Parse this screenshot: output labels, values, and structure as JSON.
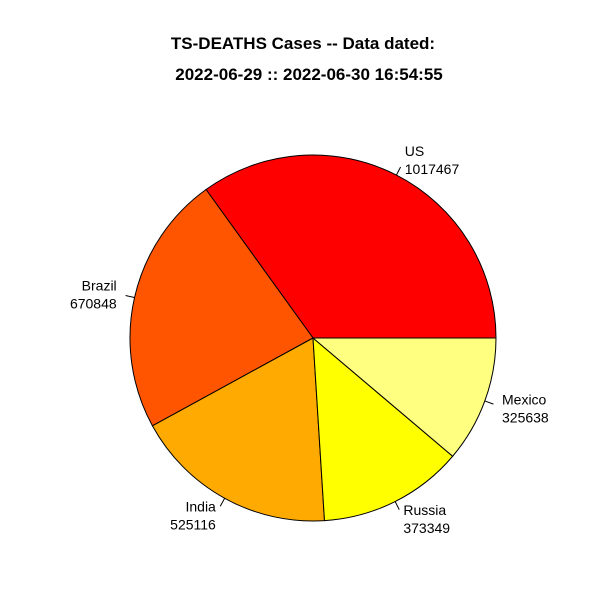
{
  "chart_data": {
    "type": "pie",
    "title": "TS-DEATHS Cases  -- Data dated:",
    "subtitle": "2022-06-29  ::  2022-06-30 16:54:55",
    "direction": "counterclockwise",
    "start_angle_deg": 0,
    "slices": [
      {
        "label": "US",
        "value_text": "1017467",
        "value": 1017467,
        "color": "#FF0000"
      },
      {
        "label": "Brazil",
        "value_text": "670848",
        "value": 670848,
        "color": "#FF5500"
      },
      {
        "label": "India",
        "value_text": "525116",
        "value": 525116,
        "color": "#FFAA00"
      },
      {
        "label": "Russia",
        "value_text": "373349",
        "value": 373349,
        "color": "#FFFF00"
      },
      {
        "label": "Mexico",
        "value_text": "325638",
        "value": 325638,
        "color": "#FFFF80"
      }
    ]
  }
}
